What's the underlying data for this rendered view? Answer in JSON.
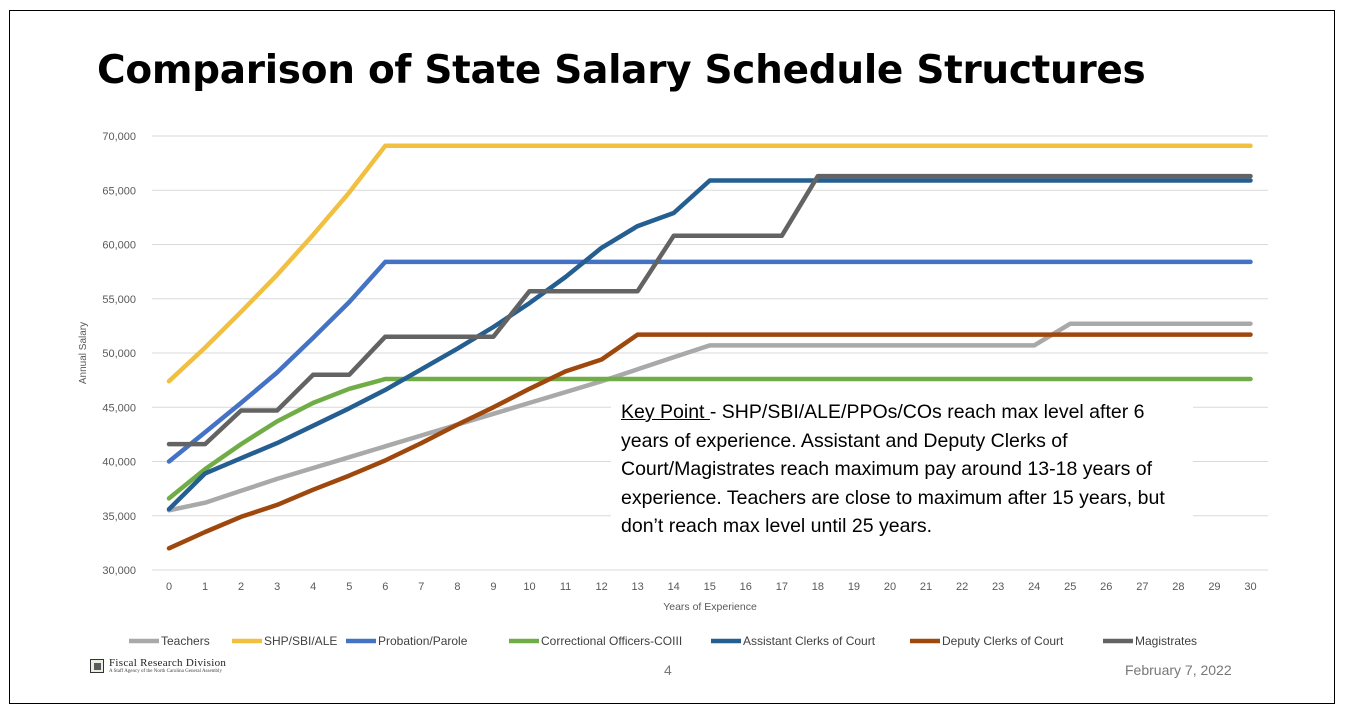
{
  "slide": {
    "title": "Comparison of State Salary Schedule Structures",
    "page_number": "4",
    "date": "February 7, 2022",
    "logo": {
      "name": "Fiscal Research Division",
      "subtitle": "A Staff Agency of the North Carolina General Assembly"
    },
    "callout": {
      "label": "Key Point ",
      "text": "- SHP/SBI/ALE/PPOs/COs reach max level after 6 years of experience.  Assistant and Deputy Clerks of Court/Magistrates reach maximum pay around 13-18 years of experience.  Teachers are close to maximum after 15 years, but don’t reach max level until 25 years."
    }
  },
  "chart_data": {
    "type": "line",
    "title": "",
    "xlabel": "Years of Experience",
    "ylabel": "Annual Salary",
    "x": [
      0,
      1,
      2,
      3,
      4,
      5,
      6,
      7,
      8,
      9,
      10,
      11,
      12,
      13,
      14,
      15,
      16,
      17,
      18,
      19,
      20,
      21,
      22,
      23,
      24,
      25,
      26,
      27,
      28,
      29,
      30
    ],
    "ylim": [
      30000,
      70000
    ],
    "yticks": [
      30000,
      35000,
      40000,
      45000,
      50000,
      55000,
      60000,
      65000,
      70000
    ],
    "ytick_labels": [
      "30,000",
      "35,000",
      "40,000",
      "45,000",
      "50,000",
      "55,000",
      "60,000",
      "65,000",
      "70,000"
    ],
    "grid": true,
    "legend_position": "bottom",
    "series": [
      {
        "name": "Teachers",
        "color": "#a9a9a9",
        "values": [
          35500,
          36200,
          37300,
          38400,
          39400,
          40400,
          41400,
          42400,
          43400,
          44400,
          45400,
          46400,
          47400,
          48500,
          49600,
          50700,
          50700,
          50700,
          50700,
          50700,
          50700,
          50700,
          50700,
          50700,
          50700,
          52700,
          52700,
          52700,
          52700,
          52700,
          52700
        ]
      },
      {
        "name": "SHP/SBI/ALE",
        "color": "#f2c040",
        "values": [
          47400,
          50500,
          53800,
          57200,
          60900,
          64800,
          69100,
          69100,
          69100,
          69100,
          69100,
          69100,
          69100,
          69100,
          69100,
          69100,
          69100,
          69100,
          69100,
          69100,
          69100,
          69100,
          69100,
          69100,
          69100,
          69100,
          69100,
          69100,
          69100,
          69100,
          69100
        ]
      },
      {
        "name": "Probation/Parole",
        "color": "#4472c4",
        "values": [
          40000,
          42700,
          45400,
          48200,
          51400,
          54700,
          58400,
          58400,
          58400,
          58400,
          58400,
          58400,
          58400,
          58400,
          58400,
          58400,
          58400,
          58400,
          58400,
          58400,
          58400,
          58400,
          58400,
          58400,
          58400,
          58400,
          58400,
          58400,
          58400,
          58400,
          58400
        ]
      },
      {
        "name": "Correctional Officers-COIII",
        "color": "#70ad47",
        "values": [
          36600,
          39300,
          41600,
          43700,
          45400,
          46700,
          47600,
          47600,
          47600,
          47600,
          47600,
          47600,
          47600,
          47600,
          47600,
          47600,
          47600,
          47600,
          47600,
          47600,
          47600,
          47600,
          47600,
          47600,
          47600,
          47600,
          47600,
          47600,
          47600,
          47600,
          47600
        ]
      },
      {
        "name": "Assistant Clerks of Court",
        "color": "#255e91",
        "values": [
          35600,
          38900,
          40300,
          41700,
          43300,
          44900,
          46600,
          48500,
          50400,
          52400,
          54600,
          57000,
          59700,
          61700,
          62900,
          65900,
          65900,
          65900,
          65900,
          65900,
          65900,
          65900,
          65900,
          65900,
          65900,
          65900,
          65900,
          65900,
          65900,
          65900,
          65900
        ]
      },
      {
        "name": "Deputy Clerks of Court",
        "color": "#9e480e",
        "values": [
          32000,
          33500,
          34900,
          36000,
          37400,
          38700,
          40100,
          41700,
          43400,
          45000,
          46700,
          48300,
          49400,
          51700,
          51700,
          51700,
          51700,
          51700,
          51700,
          51700,
          51700,
          51700,
          51700,
          51700,
          51700,
          51700,
          51700,
          51700,
          51700,
          51700,
          51700
        ]
      },
      {
        "name": "Magistrates",
        "color": "#636363",
        "values": [
          41600,
          41600,
          44700,
          44700,
          48000,
          48000,
          51500,
          51500,
          51500,
          51500,
          55700,
          55700,
          55700,
          55700,
          60800,
          60800,
          60800,
          60800,
          66300,
          66300,
          66300,
          66300,
          66300,
          66300,
          66300,
          66300,
          66300,
          66300,
          66300,
          66300,
          66300
        ]
      }
    ]
  }
}
